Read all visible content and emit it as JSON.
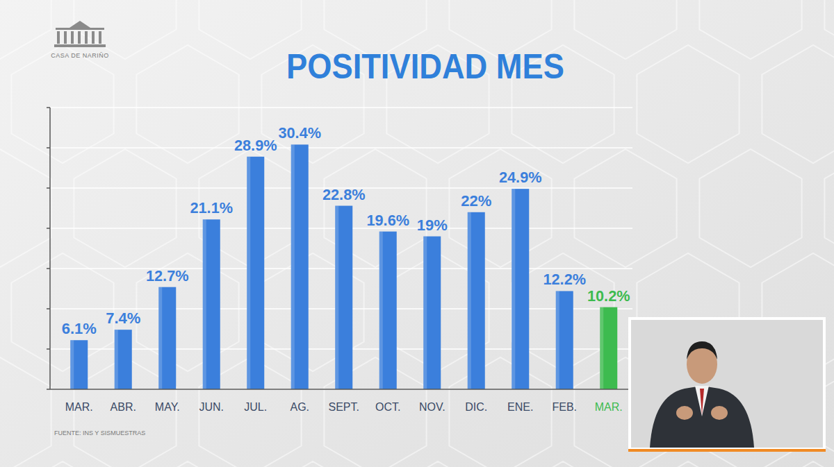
{
  "chart_data": {
    "type": "bar",
    "title": "POSITIVIDAD MES",
    "logo_text": "CASA DE NARIÑO",
    "source": "FUENTE: INS Y SISMUESTRAS",
    "categories": [
      "MAR.",
      "ABR.",
      "MAY.",
      "JUN.",
      "JUL.",
      "AG.",
      "SEPT.",
      "OCT.",
      "NOV.",
      "DIC.",
      "ENE.",
      "FEB.",
      "MAR."
    ],
    "values": [
      6.1,
      7.4,
      12.7,
      21.1,
      28.9,
      30.4,
      22.8,
      19.6,
      19,
      22,
      24.9,
      12.2,
      10.2
    ],
    "value_labels": [
      "6.1%",
      "7.4%",
      "12.7%",
      "21.1%",
      "28.9%",
      "30.4%",
      "22.8%",
      "19.6%",
      "19%",
      "22%",
      "24.9%",
      "12.2%",
      "10.2%"
    ],
    "colors": [
      "#3b7fdc",
      "#3b7fdc",
      "#3b7fdc",
      "#3b7fdc",
      "#3b7fdc",
      "#3b7fdc",
      "#3b7fdc",
      "#3b7fdc",
      "#3b7fdc",
      "#3b7fdc",
      "#3b7fdc",
      "#3b7fdc",
      "#3dbb4f"
    ],
    "ylim": [
      0,
      35
    ],
    "yticks": [
      0,
      5,
      10,
      15,
      20,
      25,
      30,
      35
    ],
    "grid": true,
    "data_labels": true,
    "tick_labels": false
  }
}
